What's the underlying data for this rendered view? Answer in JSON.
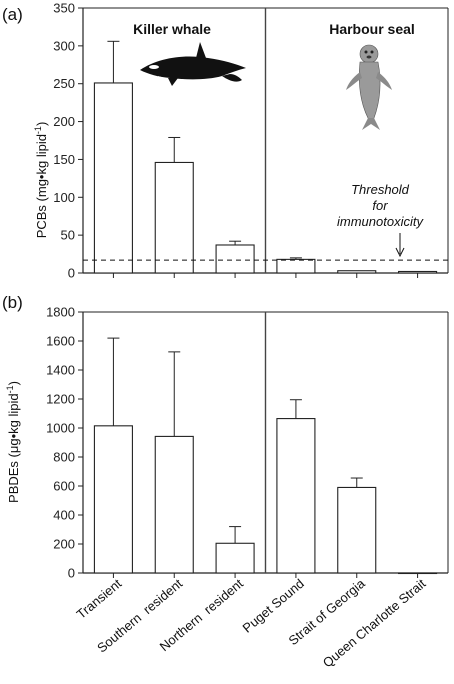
{
  "chart_data": [
    {
      "panel": "(a)",
      "type": "bar",
      "ylabel": "PCBs (mg•kg lipid",
      "ylabel_sup": "-1",
      "ylabel_end": ")",
      "ylim": [
        0,
        350
      ],
      "yticks": [
        0,
        50,
        100,
        150,
        200,
        250,
        300,
        350
      ],
      "groups": [
        {
          "title": "Killer whale",
          "icon": "killer-whale-icon"
        },
        {
          "title": "Harbour seal",
          "icon": "harbour-seal-icon"
        }
      ],
      "categories": [
        "Transient",
        "Southern  resident",
        "Northern  resident",
        "Puget Sound",
        "Strait of Georgia",
        "Queen Charlotte Strait"
      ],
      "values": [
        251,
        146,
        37,
        18,
        3,
        2
      ],
      "errors": [
        55,
        33,
        5,
        2,
        0,
        0
      ],
      "threshold": 17,
      "threshold_label": [
        "Threshold",
        "for",
        "immunotoxicity"
      ]
    },
    {
      "panel": "(b)",
      "type": "bar",
      "ylabel": "PBDEs (μg•kg lipid",
      "ylabel_sup": "-1",
      "ylabel_end": ")",
      "ylim": [
        0,
        1800
      ],
      "yticks": [
        0,
        200,
        400,
        600,
        800,
        1000,
        1200,
        1400,
        1600,
        1800
      ],
      "categories": [
        "Transient",
        "Southern  resident",
        "Northern  resident",
        "Puget Sound",
        "Strait of Georgia",
        "Queen Charlotte Strait"
      ],
      "values": [
        1015,
        942,
        205,
        1065,
        590,
        0
      ],
      "errors": [
        605,
        583,
        115,
        130,
        65,
        0
      ]
    }
  ],
  "colors": {
    "bar_fill": "#ffffff",
    "stroke": "#222222",
    "whale_body": "#111111",
    "seal_body": "#9a9a9a"
  }
}
